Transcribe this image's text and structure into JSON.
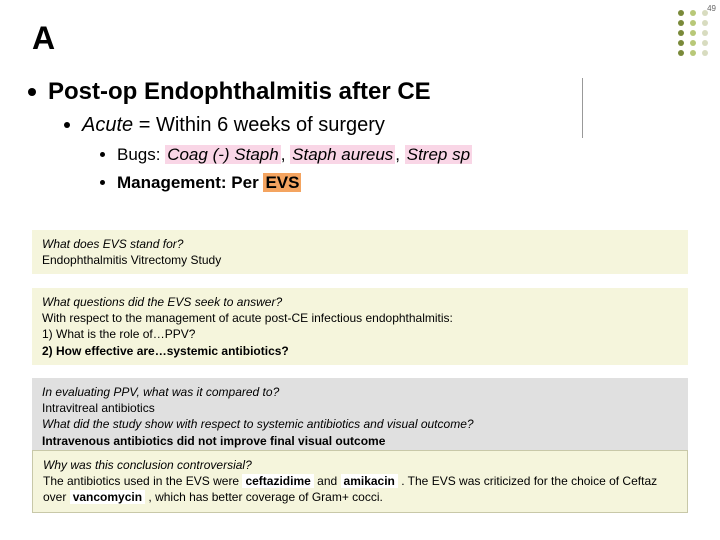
{
  "page_number": "49",
  "slide_letter": "A",
  "decoration": {
    "dots_col1": "#7a8a3a",
    "dots_col2": "#b8c878",
    "dots_col3": "#d8dcc0"
  },
  "heading": "Post-op Endophthalmitis after CE",
  "sub_heading_prefix": "Acute",
  "sub_heading_rest": " = Within 6 weeks of surgery",
  "bullet1_prefix": "Bugs: ",
  "bullet1_hl1": "Coag (-) Staph",
  "bullet1_sep1": ", ",
  "bullet1_hl2": "Staph aureus",
  "bullet1_sep2": ", ",
  "bullet1_hl3": "Strep sp",
  "bullet2_prefix": "Management: Per ",
  "bullet2_hl": "EVS",
  "box1": {
    "q": "What does EVS stand for?",
    "a": "Endophthalmitis Vitrectomy Study"
  },
  "box2": {
    "q": "What questions did the EVS seek to answer?",
    "l1": "With respect to the management of acute post-CE infectious endophthalmitis:",
    "l2": "1) What is the role of…PPV?",
    "l3": "2) How effective are…systemic antibiotics?"
  },
  "box3": {
    "q1": "In evaluating PPV, what was it compared to?",
    "a1": "Intravitreal antibiotics",
    "q2": "What did the study show with respect to systemic antibiotics and visual outcome?",
    "a2": "Intravenous antibiotics did not improve final visual outcome"
  },
  "box4": {
    "q": "Why was this conclusion controversial?",
    "p1a": "The antibiotics used in the EVS were ",
    "p1b": "ceftazidime",
    "p1c": " and ",
    "p1d": "amikacin",
    "p1e": " . The EVS was criticized for the choice of Ceftaz over ",
    "p1f": "vancomycin",
    "p1g": " , which has better coverage of Gram+ cocci."
  }
}
